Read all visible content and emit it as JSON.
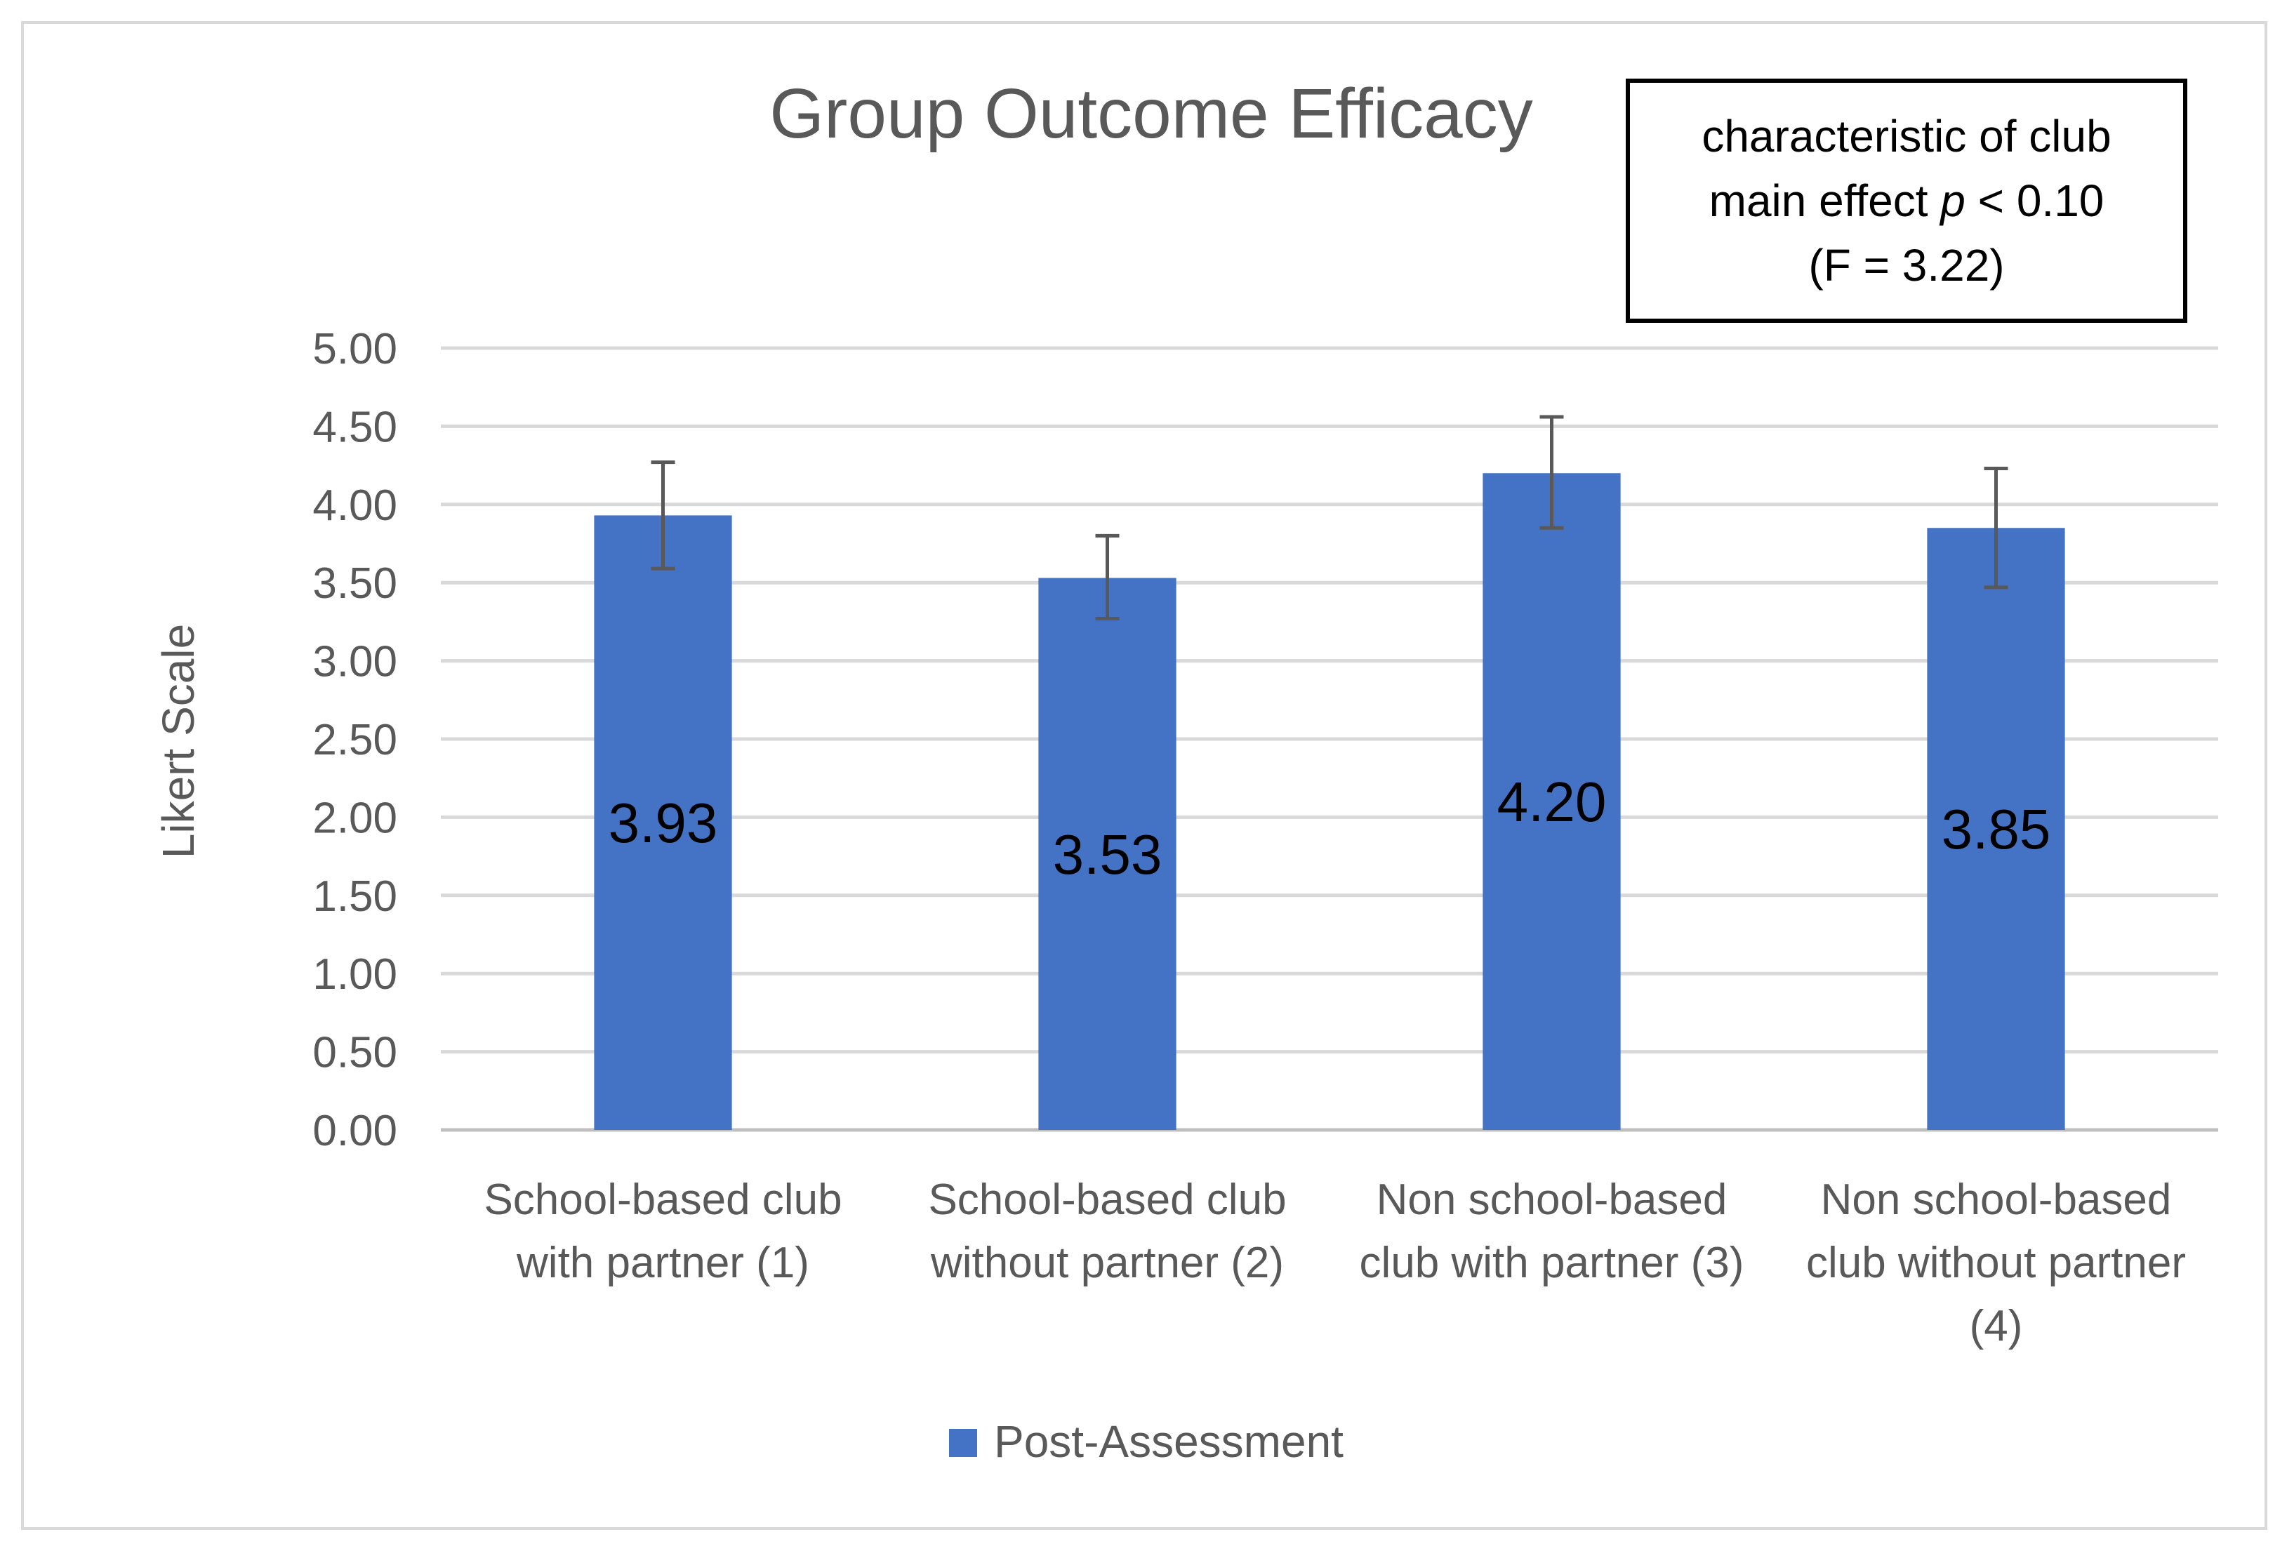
{
  "chart_data": {
    "type": "bar",
    "title": "Group Outcome Efficacy",
    "ylabel": "Likert Scale",
    "xlabel": "",
    "ylim": [
      0,
      5
    ],
    "y_ticks": [
      "0.00",
      "0.50",
      "1.00",
      "1.50",
      "2.00",
      "2.50",
      "3.00",
      "3.50",
      "4.00",
      "4.50",
      "5.00"
    ],
    "grid": true,
    "legend_position": "bottom",
    "categories": [
      [
        "School-based club",
        "with partner (1)"
      ],
      [
        "School-based club",
        "without partner (2)"
      ],
      [
        "Non school-based",
        "club with partner (3)"
      ],
      [
        "Non school-based",
        "club without partner",
        "(4)"
      ]
    ],
    "series": [
      {
        "name": "Post-Assessment",
        "color": "#4472c4",
        "values": [
          3.93,
          3.53,
          4.2,
          3.85
        ],
        "value_labels": [
          "3.93",
          "3.53",
          "4.20",
          "3.85"
        ],
        "error_low": [
          3.59,
          3.27,
          3.85,
          3.47
        ],
        "error_high": [
          4.27,
          3.8,
          4.56,
          4.23
        ]
      }
    ],
    "annotation": {
      "line1": "characteristic of club",
      "line2_before": "main effect ",
      "line2_italic": "p",
      "line2_after": " < 0.10",
      "line3": "(F = 3.22)"
    }
  }
}
